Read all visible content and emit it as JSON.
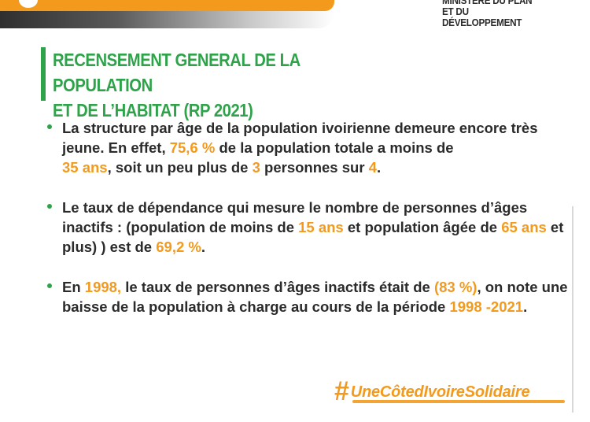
{
  "header": {
    "ministry_line1": "MINISTÈRE DU PLAN",
    "ministry_line2": "ET DU DÉVELOPPEMENT"
  },
  "title": {
    "line1": "RECENSEMENT GENERAL DE LA POPULATION",
    "line2": "ET DE L’HABITAT (RP 2021)"
  },
  "bullets": [
    {
      "segments": [
        {
          "text": "La structure par âge de la population ivoirienne demeure encore très jeune. En effet, ",
          "hl": false
        },
        {
          "text": "75,6 %",
          "hl": true
        },
        {
          "text": " de la population totale a moins de ",
          "hl": false
        },
        {
          "text": "35 ans",
          "hl": true
        },
        {
          "text": ", soit un peu plus de ",
          "hl": false
        },
        {
          "text": "3",
          "hl": true
        },
        {
          "text": " personnes sur ",
          "hl": false
        },
        {
          "text": "4",
          "hl": true
        },
        {
          "text": ".",
          "hl": false
        }
      ]
    },
    {
      "segments": [
        {
          "text": "Le taux de dépendance qui mesure le nombre de personnes d’âges inactifs : (population de moins de ",
          "hl": false
        },
        {
          "text": "15 ans",
          "hl": true
        },
        {
          "text": " et population âgée de ",
          "hl": false
        },
        {
          "text": "65 ans",
          "hl": true
        },
        {
          "text": " et plus) ) est de ",
          "hl": false
        },
        {
          "text": "69,2 %",
          "hl": true
        },
        {
          "text": ".",
          "hl": false
        }
      ]
    },
    {
      "segments": [
        {
          "text": "En ",
          "hl": false
        },
        {
          "text": "1998,",
          "hl": true
        },
        {
          "text": " le taux de personnes d’âges inactifs était de ",
          "hl": false
        },
        {
          "text": "(83 %)",
          "hl": true
        },
        {
          "text": ", on note une baisse de la population à charge au cours de la période ",
          "hl": false
        },
        {
          "text": "1998 -2021",
          "hl": true
        },
        {
          "text": ".",
          "hl": false
        }
      ]
    }
  ],
  "footer": {
    "hashtag_symbol": "#",
    "hashtag_text": "UneCôtedIvoireSolidaire"
  },
  "colors": {
    "accent_orange": "#f39a1d",
    "accent_green": "#2fa34a",
    "text": "#2b2b2b"
  }
}
